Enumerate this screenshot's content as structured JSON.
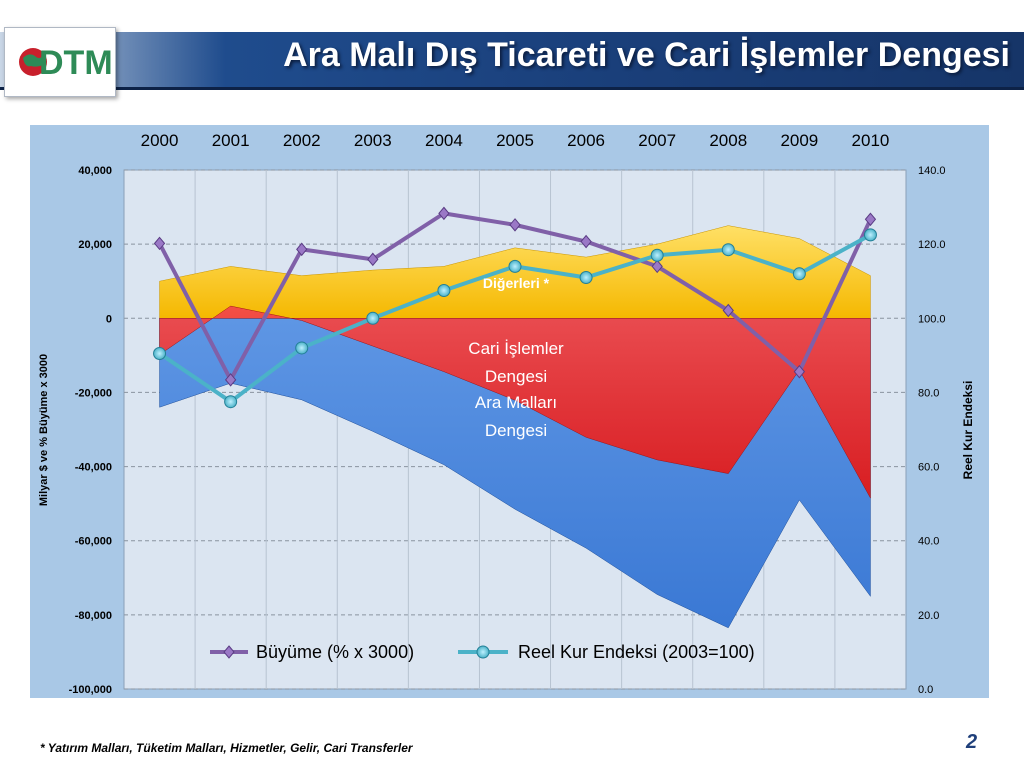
{
  "slide": {
    "title": "Ara Malı Dış Ticareti ve Cari İşlemler Dengesi",
    "logo_text": "DTM",
    "footnote": "* Yatırım Malları, Tüketim Malları, Hizmetler, Gelir, Cari Transferler",
    "page_number": "2"
  },
  "colors": {
    "others_area": "#f5b800",
    "current_account_area": "#e01818",
    "intermediate_goods_area": "#3a78d4",
    "growth_line": "#8060a8",
    "real_exchange_line": "#4bb2c8",
    "plot_background": "#dbe5f1",
    "frame": "#a9c8e6",
    "title_bar": "#1a3f7a"
  },
  "chart_data": {
    "type": "area",
    "title": "",
    "categories": [
      "2000",
      "2001",
      "2002",
      "2003",
      "2004",
      "2005",
      "2006",
      "2007",
      "2008",
      "2009",
      "2010"
    ],
    "ylabel": "Milyar $ ve % Büyüme x 3000",
    "y2label": "Reel Kur Endeksi",
    "ylim": [
      -100000,
      40000
    ],
    "y2lim": [
      0,
      140
    ],
    "yticks": [
      "40,000",
      "20,000",
      "0",
      "-20,000",
      "-40,000",
      "-60,000",
      "-80,000",
      "-100,000"
    ],
    "y2ticks": [
      "140.0",
      "120.0",
      "100.0",
      "80.0",
      "60.0",
      "40.0",
      "20.0",
      "0.0"
    ],
    "grid": true,
    "legend_position": "bottom",
    "area_series": {
      "others": [
        10000,
        14000,
        11500,
        13000,
        14000,
        19000,
        16500,
        20000,
        25000,
        21500,
        11500
      ],
      "current_account": [
        -9800,
        3300,
        -600,
        -7500,
        -14400,
        -22100,
        -32100,
        -38200,
        -41900,
        -13900,
        -48500
      ],
      "intermediate_goods": [
        -24000,
        -17500,
        -22000,
        -30500,
        -39500,
        -51500,
        -62000,
        -74500,
        -83500,
        -49000,
        -75000
      ]
    },
    "series": [
      {
        "name": "Büyüme (% x 3000)",
        "axis": "left",
        "values": [
          20200,
          -16600,
          18600,
          15900,
          28300,
          25200,
          20700,
          14000,
          2100,
          -14400,
          26700
        ]
      },
      {
        "name": "Reel Kur Endeksi (2003=100)",
        "axis": "right",
        "values": [
          90.5,
          77.5,
          92,
          100,
          107.5,
          114,
          111,
          117,
          118.5,
          112,
          122.5
        ]
      }
    ],
    "annotations": {
      "others_label": "Diğerleri *",
      "current_account_label_1": "Cari İşlemler",
      "current_account_label_2": "Dengesi",
      "intermediate_label_1": "Ara Malları",
      "intermediate_label_2": "Dengesi"
    }
  }
}
